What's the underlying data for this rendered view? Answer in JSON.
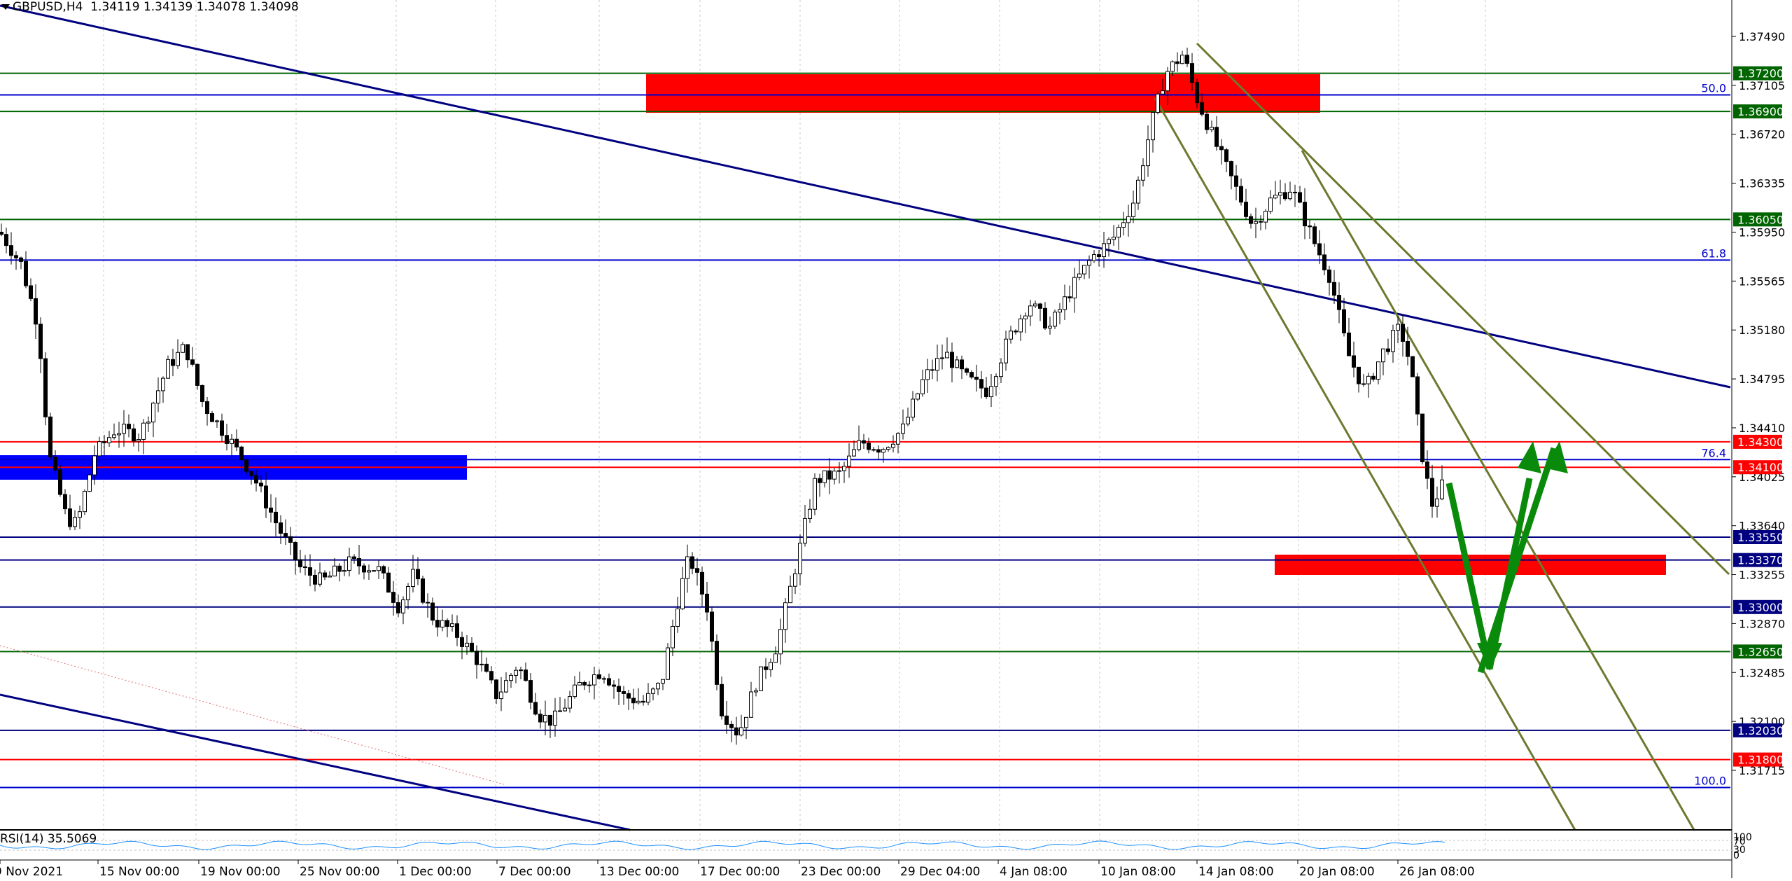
{
  "header": {
    "symbol": "GBPUSD,H4",
    "ohlc": "1.34119 1.34139 1.34078 1.34098"
  },
  "rsi": {
    "label": "RSI(14) 35.5069",
    "value": 35.5069,
    "scale_labels": [
      "100",
      "70",
      "30",
      "0"
    ]
  },
  "price_axis": {
    "ticks": [
      "1.37490",
      "1.37105",
      "1.36720",
      "1.36335",
      "1.35950",
      "1.35565",
      "1.35180",
      "1.34795",
      "1.34410",
      "1.34025",
      "1.33640",
      "1.33255",
      "1.32870",
      "1.32485",
      "1.32100",
      "1.31715"
    ]
  },
  "time_axis": {
    "labels": [
      "9 Nov 2021",
      "15 Nov 00:00",
      "19 Nov 00:00",
      "25 Nov 00:00",
      "1 Dec 00:00",
      "7 Dec 00:00",
      "13 Dec 00:00",
      "17 Dec 00:00",
      "23 Dec 00:00",
      "29 Dec 04:00",
      "4 Jan 08:00",
      "10 Jan 08:00",
      "14 Jan 08:00",
      "20 Jan 08:00",
      "26 Jan 08:00"
    ]
  },
  "levels": [
    {
      "label": "1.37200",
      "price": 1.372,
      "color": "#006400"
    },
    {
      "label": "1.36900",
      "price": 1.369,
      "color": "#006400"
    },
    {
      "label": "1.36050",
      "price": 1.3605,
      "color": "#006400"
    },
    {
      "label": "1.34300",
      "price": 1.343,
      "color": "#ff0000"
    },
    {
      "label": "1.34100",
      "price": 1.341,
      "color": "#ff0000"
    },
    {
      "label": "1.33550",
      "price": 1.3355,
      "color": "#000080"
    },
    {
      "label": "1.33370",
      "price": 1.3337,
      "color": "#000080"
    },
    {
      "label": "1.33000",
      "price": 1.33,
      "color": "#000080"
    },
    {
      "label": "1.32650",
      "price": 1.3265,
      "color": "#006400"
    },
    {
      "label": "1.32030",
      "price": 1.3203,
      "color": "#000080"
    },
    {
      "label": "1.31800",
      "price": 1.318,
      "color": "#ff0000"
    }
  ],
  "fibo": [
    {
      "label": "50.0",
      "price": 1.3703
    },
    {
      "label": "61.8",
      "price": 1.3573
    },
    {
      "label": "76.4",
      "price": 1.3416
    },
    {
      "label": "100.0",
      "price": 1.3158
    }
  ],
  "colors": {
    "candle": "#000000",
    "grid": "#c8c8c8",
    "fibo": "#0000cd",
    "zone_red": "#ff0000",
    "zone_blue": "#0000ff",
    "arrow": "#0a8a0a",
    "channel": "#6b7a2f",
    "trend": "#000080"
  }
}
